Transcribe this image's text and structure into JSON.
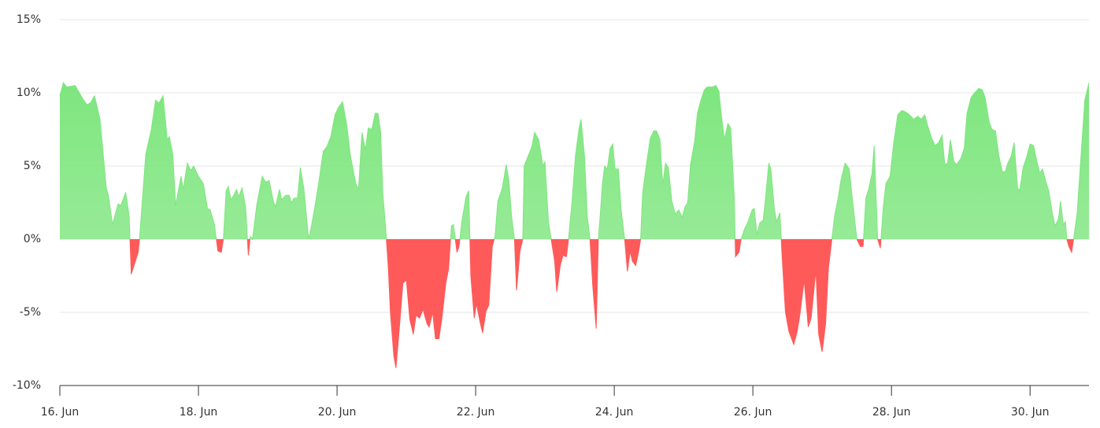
{
  "chart_data": {
    "type": "area",
    "color": "#7ee67e",
    "negative_color": "#ff5a5a",
    "x": [
      16.0,
      16.05,
      16.1,
      16.22,
      16.33,
      16.39,
      16.44,
      16.5,
      16.58,
      16.67,
      16.7,
      16.76,
      16.84,
      16.88,
      16.95,
      17.0,
      17.03,
      17.13,
      17.15,
      17.18,
      17.24,
      17.32,
      17.38,
      17.43,
      17.49,
      17.55,
      17.58,
      17.63,
      17.67,
      17.75,
      17.78,
      17.84,
      17.89,
      17.93,
      18.0,
      18.07,
      18.13,
      18.17,
      18.23,
      18.28,
      18.33,
      18.36,
      18.4,
      18.43,
      18.47,
      18.51,
      18.55,
      18.58,
      18.63,
      18.68,
      18.72,
      18.75,
      18.78,
      18.84,
      18.92,
      18.97,
      19.02,
      19.08,
      19.11,
      19.17,
      19.2,
      19.26,
      19.31,
      19.34,
      19.38,
      19.43,
      19.47,
      19.52,
      19.59,
      19.63,
      19.68,
      19.74,
      19.8,
      19.85,
      19.91,
      19.97,
      20.02,
      20.08,
      20.14,
      20.19,
      20.27,
      20.31,
      20.36,
      20.41,
      20.45,
      20.5,
      20.55,
      20.59,
      20.63,
      20.66,
      20.7,
      20.74,
      20.77,
      20.82,
      20.85,
      20.9,
      20.95,
      21.0,
      21.05,
      21.1,
      21.14,
      21.19,
      21.24,
      21.3,
      21.33,
      21.38,
      21.42,
      21.47,
      21.51,
      21.57,
      21.61,
      21.65,
      21.68,
      21.73,
      21.76,
      21.8,
      21.86,
      21.9,
      21.93,
      21.98,
      22.01,
      22.07,
      22.1,
      22.15,
      22.19,
      22.24,
      22.28,
      22.32,
      22.38,
      22.41,
      22.44,
      22.48,
      22.52,
      22.56,
      22.59,
      22.64,
      22.68,
      22.7,
      22.75,
      22.81,
      22.85,
      22.91,
      22.97,
      23.0,
      23.05,
      23.09,
      23.14,
      23.17,
      23.22,
      23.26,
      23.31,
      23.34,
      23.39,
      23.44,
      23.49,
      23.52,
      23.57,
      23.61,
      23.65,
      23.69,
      23.74,
      23.77,
      23.8,
      23.83,
      23.86,
      23.9,
      23.94,
      23.98,
      24.01,
      24.06,
      24.1,
      24.15,
      24.19,
      24.23,
      24.26,
      24.31,
      24.35,
      24.38,
      24.41,
      24.47,
      24.52,
      24.57,
      24.61,
      24.66,
      24.7,
      24.74,
      24.78,
      24.83,
      24.88,
      24.93,
      24.98,
      25.02,
      25.06,
      25.1,
      25.16,
      25.2,
      25.25,
      25.3,
      25.34,
      25.41,
      25.47,
      25.51,
      25.55,
      25.59,
      25.64,
      25.68,
      25.73,
      25.75,
      25.8,
      25.83,
      25.88,
      25.93,
      25.99,
      26.02,
      26.06,
      26.1,
      26.15,
      26.18,
      26.23,
      26.26,
      26.31,
      26.34,
      26.39,
      26.42,
      26.47,
      26.52,
      26.59,
      26.64,
      26.68,
      26.74,
      26.8,
      26.84,
      26.91,
      26.95,
      27.0,
      27.05,
      27.09,
      27.14,
      27.18,
      27.23,
      27.27,
      27.33,
      27.39,
      27.43,
      27.5,
      27.55,
      27.59,
      27.63,
      27.67,
      27.72,
      27.75,
      27.8,
      27.84,
      27.88,
      27.92,
      27.98,
      28.03,
      28.09,
      28.15,
      28.2,
      28.26,
      28.32,
      28.38,
      28.43,
      28.48,
      28.52,
      28.58,
      28.63,
      28.68,
      28.73,
      28.77,
      28.81,
      28.85,
      28.9,
      28.94,
      29.0,
      29.05,
      29.09,
      29.15,
      29.2,
      29.26,
      29.31,
      29.35,
      29.41,
      29.45,
      29.5,
      29.55,
      29.6,
      29.64,
      29.68,
      29.73,
      29.77,
      29.82,
      29.85,
      29.9,
      29.95,
      30.0,
      30.05,
      30.09,
      30.14,
      30.18,
      30.23,
      30.27,
      30.32,
      30.36,
      30.41,
      30.44,
      30.48,
      30.51,
      30.53,
      30.56,
      30.6,
      30.64,
      30.68,
      30.73,
      30.79,
      30.85
    ],
    "values": [
      9.8,
      10.7,
      10.4,
      10.5,
      9.6,
      9.2,
      9.3,
      9.8,
      8.2,
      3.5,
      3.0,
      1.0,
      2.4,
      2.3,
      3.2,
      1.6,
      -2.4,
      -0.9,
      0,
      2.0,
      5.8,
      7.5,
      9.5,
      9.3,
      9.8,
      6.8,
      7.0,
      5.8,
      2.3,
      4.3,
      3.4,
      5.2,
      4.7,
      5.0,
      4.3,
      3.8,
      2.1,
      2.0,
      1.0,
      -0.8,
      -0.9,
      0,
      3.3,
      3.6,
      2.7,
      3.0,
      3.4,
      2.9,
      3.5,
      2.2,
      -1.1,
      0.2,
      0,
      2.3,
      4.3,
      3.9,
      4.0,
      2.6,
      2.2,
      3.4,
      2.7,
      3.0,
      3.0,
      2.5,
      2.8,
      2.8,
      4.9,
      3.5,
      0,
      0.9,
      2.2,
      4.0,
      6.0,
      6.3,
      7.0,
      8.5,
      9.0,
      9.4,
      7.8,
      5.8,
      3.8,
      3.4,
      7.3,
      6.1,
      7.6,
      7.5,
      8.6,
      8.6,
      7.3,
      3.2,
      0.8,
      -2,
      -5,
      -8,
      -8.8,
      -6,
      -3,
      -2.8,
      -5.5,
      -6.5,
      -5.2,
      -5.4,
      -4.8,
      -5.8,
      -6,
      -5,
      -6.8,
      -6.8,
      -5.5,
      -3,
      -2,
      0.9,
      1.0,
      -0.9,
      -0.5,
      1.2,
      2.9,
      3.3,
      -2.5,
      -5.4,
      -4.4,
      -5.8,
      -6.4,
      -4.9,
      -4.5,
      -0.5,
      0.2,
      2.6,
      3.4,
      4.2,
      5.1,
      4.0,
      1.5,
      0,
      -3.5,
      -0.8,
      0,
      5.0,
      5.6,
      6.3,
      7.3,
      6.8,
      5.0,
      5.3,
      1.2,
      0,
      -1.5,
      -3.6,
      -1.8,
      -1.1,
      -1.2,
      0,
      2.5,
      5.7,
      7.5,
      8.2,
      5.7,
      1.6,
      0,
      -3.2,
      -6.1,
      0,
      1.8,
      3.8,
      5.0,
      4.8,
      6.2,
      6.5,
      4.8,
      4.8,
      2.0,
      0,
      -2.2,
      -0.8,
      -1.5,
      -1.8,
      -0.9,
      0,
      3.2,
      5.3,
      6.9,
      7.4,
      7.4,
      6.8,
      3.7,
      5.2,
      4.9,
      2.6,
      1.7,
      2.0,
      1.5,
      2.2,
      2.5,
      5.1,
      6.7,
      8.6,
      9.5,
      10.2,
      10.4,
      10.4,
      10.5,
      10.1,
      8.3,
      6.8,
      7.9,
      7.6,
      3.0,
      -1.2,
      -0.9,
      0,
      0.7,
      1.2,
      2.0,
      2.1,
      0.3,
      1.1,
      1.3,
      2.7,
      5.2,
      4.8,
      2.1,
      1.2,
      1.8,
      -1,
      -5.0,
      -6.3,
      -7.2,
      -6.3,
      -5.1,
      -2.8,
      -6,
      -5.4,
      -2.1,
      -6.5,
      -7.7,
      -5.8,
      -2,
      0,
      1.6,
      2.8,
      4.0,
      5.2,
      4.8,
      3.0,
      0,
      -0.5,
      -0.5,
      2.8,
      3.4,
      4.5,
      6.4,
      0,
      -0.6,
      2.1,
      3.8,
      4.3,
      6.5,
      8.5,
      8.8,
      8.7,
      8.5,
      8.2,
      8.4,
      8.2,
      8.5,
      7.8,
      6.9,
      6.4,
      6.6,
      7.1,
      5.1,
      5.2,
      6.8,
      5.3,
      5.1,
      5.5,
      6.2,
      8.6,
      9.7,
      10.0,
      10.3,
      10.2,
      9.7,
      8.0,
      7.5,
      7.4,
      5.7,
      4.6,
      4.6,
      5.2,
      5.7,
      6.6,
      3.5,
      3.3,
      4.9,
      5.6,
      6.5,
      6.4,
      5.5,
      4.5,
      4.8,
      3.9,
      3.3,
      1.8,
      0.9,
      1.4,
      2.6,
      1.0,
      1.2,
      0,
      -0.5,
      -0.9,
      0.4,
      1.8,
      5.3,
      9.5,
      10.7
    ],
    "xlim": [
      16,
      30.85
    ],
    "xticks": [
      {
        "value": 16,
        "label": "16. Jun"
      },
      {
        "value": 18,
        "label": "18. Jun"
      },
      {
        "value": 20,
        "label": "20. Jun"
      },
      {
        "value": 22,
        "label": "22. Jun"
      },
      {
        "value": 24,
        "label": "24. Jun"
      },
      {
        "value": 26,
        "label": "26. Jun"
      },
      {
        "value": 28,
        "label": "28. Jun"
      },
      {
        "value": 30,
        "label": "30. Jun"
      }
    ],
    "ylim": [
      -10,
      15
    ],
    "yticks": [
      {
        "value": -10,
        "label": "-10%"
      },
      {
        "value": -5,
        "label": "-5%"
      },
      {
        "value": 0,
        "label": "0%"
      },
      {
        "value": 5,
        "label": "5%"
      },
      {
        "value": 10,
        "label": "10%"
      },
      {
        "value": 15,
        "label": "15%"
      }
    ],
    "grid": true
  }
}
